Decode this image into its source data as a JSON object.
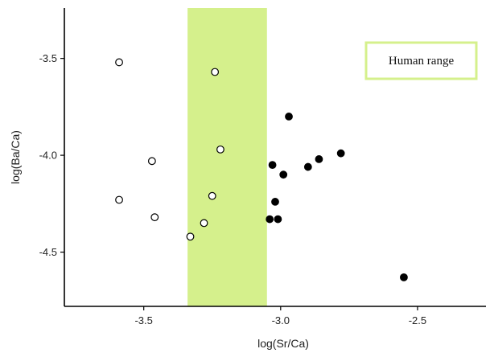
{
  "chart_data": {
    "type": "scatter",
    "title": "",
    "xlabel": "log(Sr/Ca)",
    "ylabel": "log(Ba/Ca)",
    "xlim": [
      -3.79,
      -2.25
    ],
    "ylim": [
      -4.78,
      -3.24
    ],
    "xticks": [
      -3.5,
      -3.0,
      -2.5
    ],
    "yticks": [
      -3.5,
      -4.0,
      -4.5
    ],
    "x_tick_labels": [
      "-3.5",
      "-3.0",
      "-2.5"
    ],
    "y_tick_labels": [
      "-3.5",
      "-4.0",
      "-4.5"
    ],
    "grid": false,
    "legend_position": "top-right",
    "shaded_region": {
      "name": "Human range",
      "x_range": [
        -3.34,
        -3.05
      ],
      "color": "#d5f08c"
    },
    "series": [
      {
        "marker": "open-circle",
        "color": "#000000",
        "x": [
          -3.59,
          -3.24,
          -3.47,
          -3.22,
          -3.59,
          -3.25,
          -3.46,
          -3.28,
          -3.33
        ],
        "y": [
          -3.52,
          -3.57,
          -4.03,
          -3.97,
          -4.23,
          -4.21,
          -4.32,
          -4.35,
          -4.42
        ]
      },
      {
        "marker": "filled-circle",
        "color": "#000000",
        "x": [
          -2.97,
          -3.03,
          -2.99,
          -2.9,
          -2.86,
          -2.78,
          -3.02,
          -3.04,
          -3.01,
          -2.55
        ],
        "y": [
          -3.8,
          -4.05,
          -4.1,
          -4.06,
          -4.02,
          -3.99,
          -4.24,
          -4.33,
          -4.33,
          -4.63
        ]
      }
    ]
  }
}
